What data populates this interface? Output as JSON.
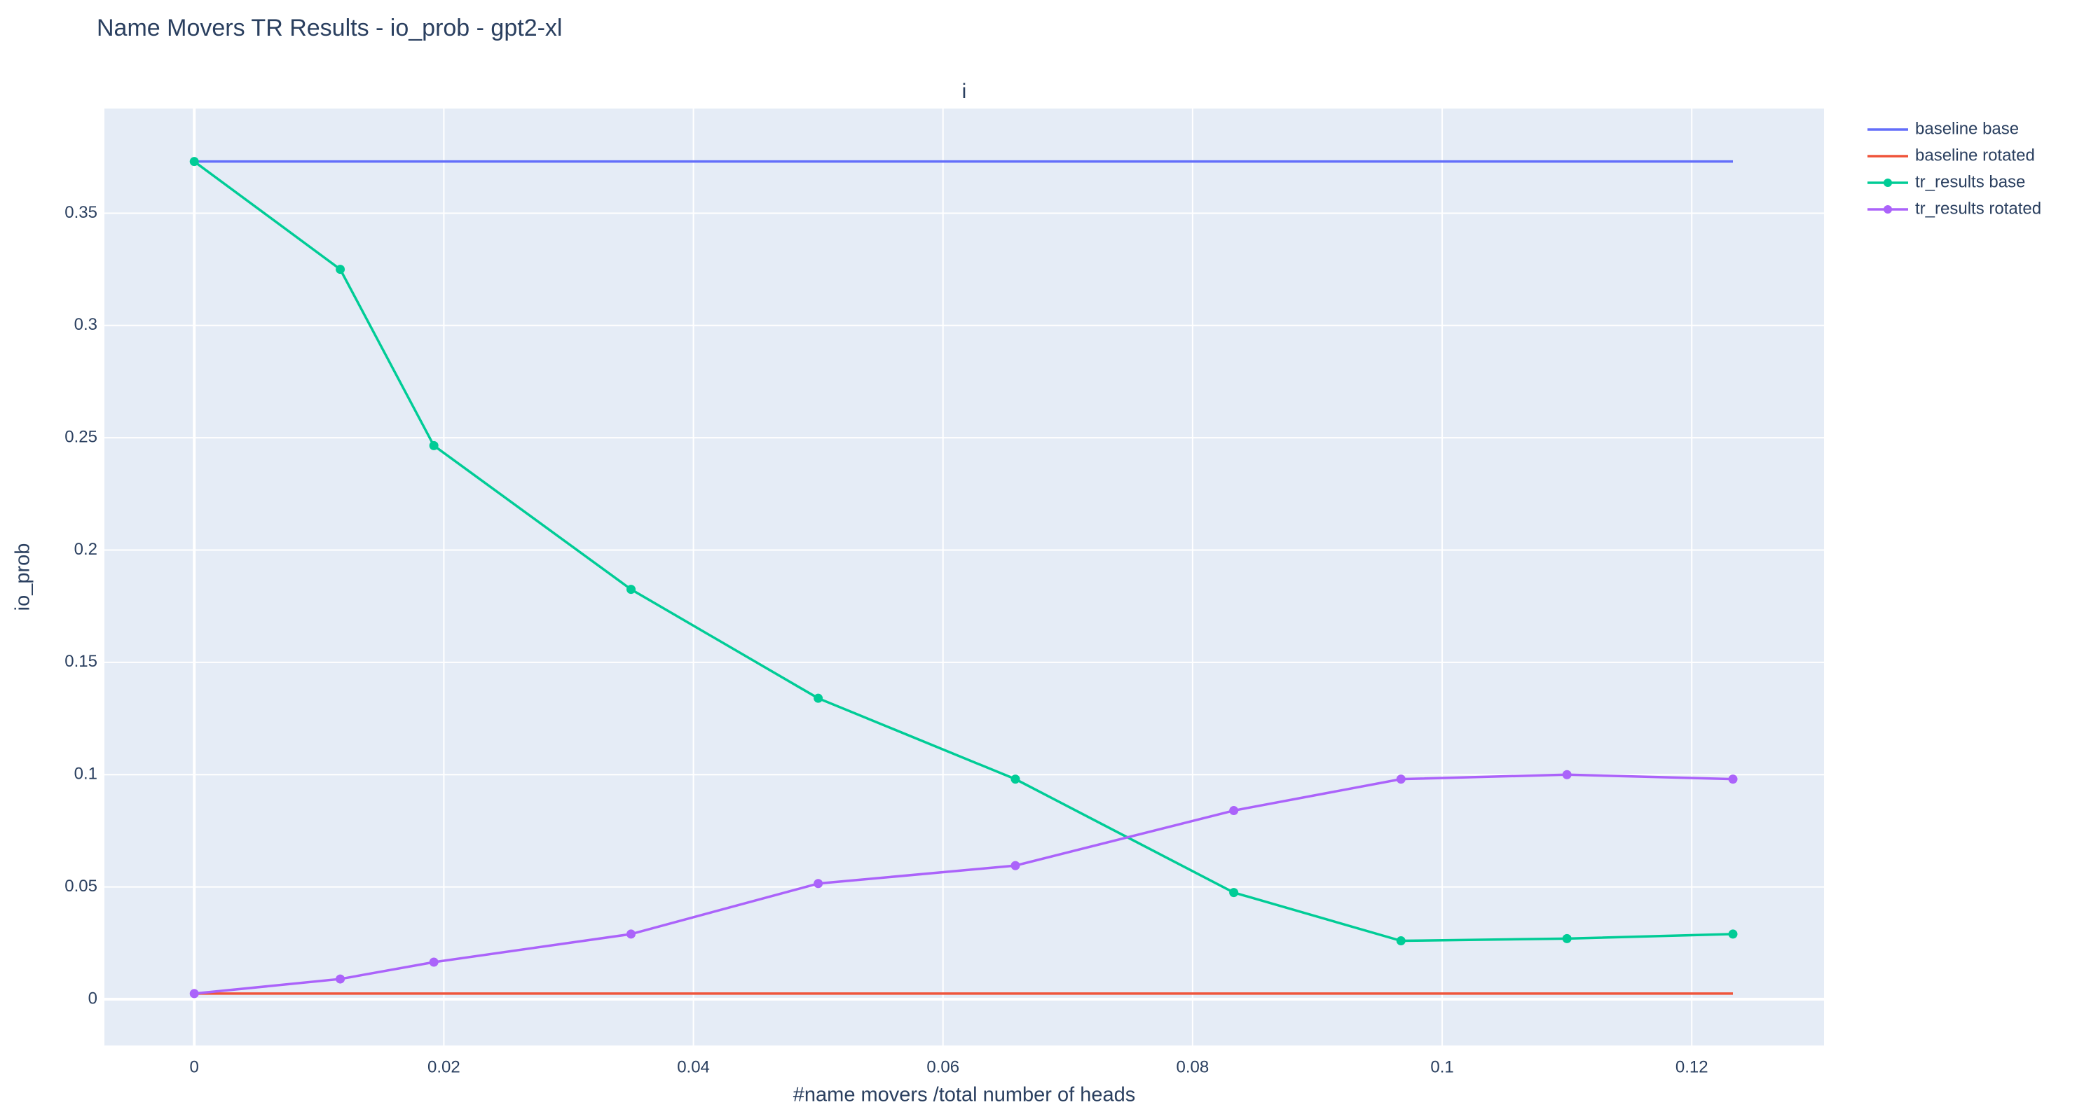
{
  "chart_data": {
    "type": "line",
    "title": "Name Movers TR Results - io_prob - gpt2-xl",
    "subtitle": "i",
    "x_label": "#name movers /total number of heads",
    "y_label": "io_prob",
    "xlim": [
      -0.0072,
      0.1306
    ],
    "ylim": [
      -0.0206,
      0.3966
    ],
    "xticks": [
      0,
      0.02,
      0.04,
      0.06,
      0.08,
      0.1,
      0.12
    ],
    "yticks": [
      0,
      0.05,
      0.1,
      0.15,
      0.2,
      0.25,
      0.3,
      0.35
    ],
    "grid": true,
    "legend": "outside-right",
    "series": [
      {
        "name": "baseline base",
        "color": "#636efa",
        "mode": "lines",
        "x": [
          0,
          0.1233
        ],
        "values": [
          0.373,
          0.373
        ]
      },
      {
        "name": "baseline rotated",
        "color": "#ef553b",
        "mode": "lines",
        "x": [
          0,
          0.1233
        ],
        "values": [
          0.0025,
          0.0025
        ]
      },
      {
        "name": "tr_results base",
        "color": "#00cc96",
        "mode": "lines+markers",
        "x": [
          0,
          0.0117,
          0.0192,
          0.035,
          0.05,
          0.0658,
          0.0833,
          0.0967,
          0.11,
          0.1233
        ],
        "values": [
          0.373,
          0.325,
          0.2465,
          0.1825,
          0.134,
          0.098,
          0.0475,
          0.026,
          0.027,
          0.029
        ]
      },
      {
        "name": "tr_results rotated",
        "color": "#ab63fa",
        "mode": "lines+markers",
        "x": [
          0,
          0.0117,
          0.0192,
          0.035,
          0.05,
          0.0658,
          0.0833,
          0.0967,
          0.11,
          0.1233
        ],
        "values": [
          0.0025,
          0.009,
          0.0165,
          0.029,
          0.0515,
          0.0595,
          0.084,
          0.098,
          0.1,
          0.098
        ]
      }
    ]
  }
}
